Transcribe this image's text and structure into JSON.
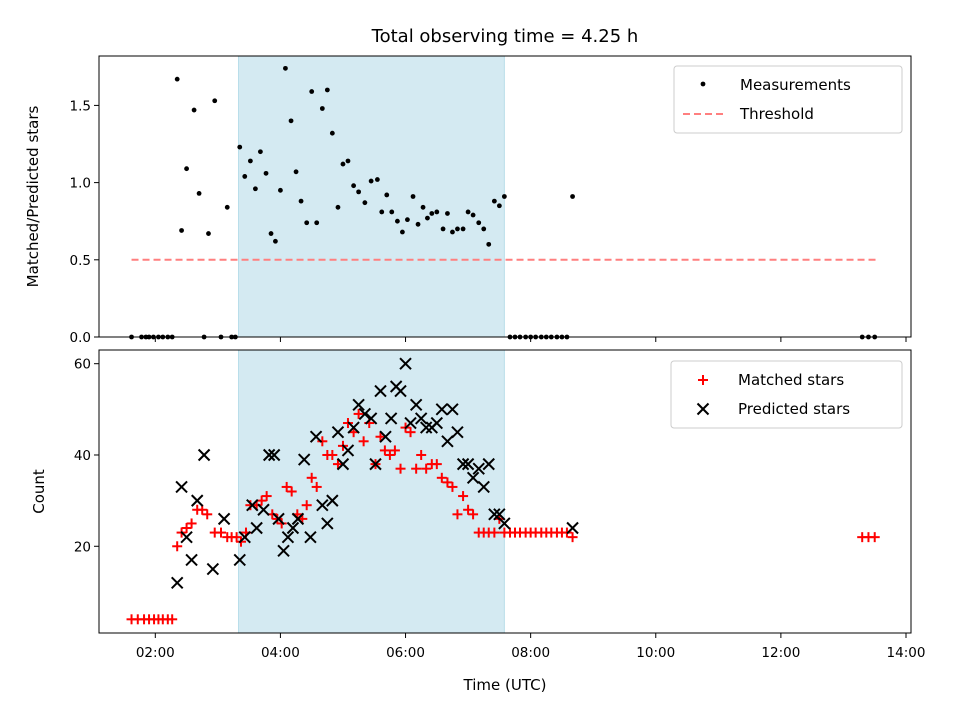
{
  "chart_data": [
    {
      "type": "scatter",
      "title": "Total observing time = 4.25 h",
      "ylabel": "Matched/Predicted stars",
      "xlabel": "",
      "xlim": [
        1.1,
        14.08
      ],
      "ylim": [
        0,
        1.82
      ],
      "x_ticks": [
        2,
        4,
        6,
        8,
        10,
        12,
        14
      ],
      "y_ticks": [
        {
          "value": 0.0,
          "label": "0.0"
        },
        {
          "value": 0.5,
          "label": "0.5"
        },
        {
          "value": 1.0,
          "label": "1.0"
        },
        {
          "value": 1.5,
          "label": "1.5"
        }
      ],
      "shaded_span": {
        "x0": 3.33,
        "x1": 7.58,
        "color": "#add8e6"
      },
      "legend": {
        "placement": "top-right",
        "entries": [
          "Measurements",
          "Threshold"
        ]
      },
      "threshold": {
        "name": "Threshold",
        "y": 0.5,
        "x": [
          1.62,
          13.55
        ],
        "color": "#ff7f7f"
      },
      "series": [
        {
          "name": "Measurements",
          "color": "#000000",
          "points": [
            [
              1.62,
              0
            ],
            [
              1.78,
              0
            ],
            [
              1.85,
              0
            ],
            [
              1.9,
              0
            ],
            [
              1.97,
              0
            ],
            [
              2.05,
              0
            ],
            [
              2.12,
              0
            ],
            [
              2.2,
              0
            ],
            [
              2.27,
              0
            ],
            [
              2.35,
              1.67
            ],
            [
              2.42,
              0.69
            ],
            [
              2.5,
              1.09
            ],
            [
              2.62,
              1.47
            ],
            [
              2.7,
              0.93
            ],
            [
              2.78,
              0
            ],
            [
              2.85,
              0.67
            ],
            [
              2.95,
              1.53
            ],
            [
              3.05,
              0
            ],
            [
              3.15,
              0.84
            ],
            [
              3.22,
              0
            ],
            [
              3.28,
              0
            ],
            [
              3.35,
              1.23
            ],
            [
              3.43,
              1.04
            ],
            [
              3.52,
              1.14
            ],
            [
              3.6,
              0.96
            ],
            [
              3.68,
              1.2
            ],
            [
              3.77,
              1.06
            ],
            [
              3.85,
              0.67
            ],
            [
              3.92,
              0.62
            ],
            [
              4.0,
              0.95
            ],
            [
              4.08,
              1.74
            ],
            [
              4.17,
              1.4
            ],
            [
              4.25,
              1.07
            ],
            [
              4.33,
              0.88
            ],
            [
              4.42,
              0.74
            ],
            [
              4.5,
              1.59
            ],
            [
              4.58,
              0.74
            ],
            [
              4.67,
              1.48
            ],
            [
              4.75,
              1.6
            ],
            [
              4.83,
              1.32
            ],
            [
              4.92,
              0.84
            ],
            [
              5.0,
              1.12
            ],
            [
              5.08,
              1.14
            ],
            [
              5.17,
              0.98
            ],
            [
              5.25,
              0.94
            ],
            [
              5.35,
              0.87
            ],
            [
              5.45,
              1.01
            ],
            [
              5.55,
              1.02
            ],
            [
              5.62,
              0.81
            ],
            [
              5.7,
              0.92
            ],
            [
              5.78,
              0.81
            ],
            [
              5.87,
              0.75
            ],
            [
              5.95,
              0.68
            ],
            [
              6.03,
              0.76
            ],
            [
              6.12,
              0.91
            ],
            [
              6.2,
              0.73
            ],
            [
              6.28,
              0.84
            ],
            [
              6.35,
              0.77
            ],
            [
              6.42,
              0.8
            ],
            [
              6.5,
              0.81
            ],
            [
              6.6,
              0.7
            ],
            [
              6.67,
              0.8
            ],
            [
              6.75,
              0.68
            ],
            [
              6.83,
              0.7
            ],
            [
              6.92,
              0.7
            ],
            [
              7.0,
              0.81
            ],
            [
              7.08,
              0.79
            ],
            [
              7.17,
              0.74
            ],
            [
              7.25,
              0.7
            ],
            [
              7.33,
              0.6
            ],
            [
              7.42,
              0.88
            ],
            [
              7.5,
              0.85
            ],
            [
              7.58,
              0.91
            ],
            [
              7.67,
              0
            ],
            [
              7.75,
              0
            ],
            [
              7.83,
              0
            ],
            [
              7.92,
              0
            ],
            [
              8.0,
              0
            ],
            [
              8.08,
              0
            ],
            [
              8.17,
              0
            ],
            [
              8.25,
              0
            ],
            [
              8.33,
              0
            ],
            [
              8.42,
              0
            ],
            [
              8.5,
              0
            ],
            [
              8.58,
              0
            ],
            [
              8.67,
              0.91
            ],
            [
              13.3,
              0
            ],
            [
              13.4,
              0
            ],
            [
              13.5,
              0
            ]
          ]
        }
      ]
    },
    {
      "type": "scatter",
      "title": "",
      "ylabel": "Count",
      "xlabel": "Time (UTC)",
      "xlim": [
        1.1,
        14.08
      ],
      "ylim": [
        1,
        63
      ],
      "x_ticks": [
        {
          "value": 2,
          "label": "02:00"
        },
        {
          "value": 4,
          "label": "04:00"
        },
        {
          "value": 6,
          "label": "06:00"
        },
        {
          "value": 8,
          "label": "08:00"
        },
        {
          "value": 10,
          "label": "10:00"
        },
        {
          "value": 12,
          "label": "12:00"
        },
        {
          "value": 14,
          "label": "14:00"
        }
      ],
      "y_ticks": [
        {
          "value": 20,
          "label": "20"
        },
        {
          "value": 40,
          "label": "40"
        },
        {
          "value": 60,
          "label": "60"
        }
      ],
      "shaded_span": {
        "x0": 3.33,
        "x1": 7.58,
        "color": "#add8e6"
      },
      "legend": {
        "placement": "top-right",
        "entries": [
          "Matched stars",
          "Predicted stars"
        ]
      },
      "series": [
        {
          "name": "Matched stars",
          "marker": "plus",
          "color": "#ff0000",
          "points": [
            [
              1.62,
              4
            ],
            [
              1.72,
              4
            ],
            [
              1.82,
              4
            ],
            [
              1.9,
              4
            ],
            [
              1.98,
              4
            ],
            [
              2.05,
              4
            ],
            [
              2.12,
              4
            ],
            [
              2.2,
              4
            ],
            [
              2.27,
              4
            ],
            [
              2.35,
              20
            ],
            [
              2.42,
              23
            ],
            [
              2.5,
              24
            ],
            [
              2.58,
              25
            ],
            [
              2.67,
              28
            ],
            [
              2.75,
              28
            ],
            [
              2.83,
              27
            ],
            [
              2.95,
              23
            ],
            [
              3.05,
              23
            ],
            [
              3.15,
              22
            ],
            [
              3.22,
              22
            ],
            [
              3.3,
              22
            ],
            [
              3.37,
              21
            ],
            [
              3.45,
              23
            ],
            [
              3.52,
              29
            ],
            [
              3.62,
              29
            ],
            [
              3.7,
              30
            ],
            [
              3.78,
              31
            ],
            [
              3.87,
              27
            ],
            [
              3.95,
              26
            ],
            [
              4.02,
              25
            ],
            [
              4.1,
              33
            ],
            [
              4.18,
              32
            ],
            [
              4.27,
              27
            ],
            [
              4.35,
              26
            ],
            [
              4.42,
              29
            ],
            [
              4.5,
              35
            ],
            [
              4.58,
              33
            ],
            [
              4.67,
              43
            ],
            [
              4.75,
              40
            ],
            [
              4.83,
              40
            ],
            [
              4.92,
              38
            ],
            [
              5.0,
              42
            ],
            [
              5.08,
              47
            ],
            [
              5.17,
              45
            ],
            [
              5.25,
              49
            ],
            [
              5.33,
              43
            ],
            [
              5.42,
              47
            ],
            [
              5.52,
              38
            ],
            [
              5.6,
              44
            ],
            [
              5.67,
              41
            ],
            [
              5.75,
              40
            ],
            [
              5.83,
              41
            ],
            [
              5.92,
              37
            ],
            [
              6.0,
              46
            ],
            [
              6.08,
              45
            ],
            [
              6.17,
              37
            ],
            [
              6.25,
              40
            ],
            [
              6.33,
              37
            ],
            [
              6.42,
              38
            ],
            [
              6.5,
              38
            ],
            [
              6.58,
              35
            ],
            [
              6.67,
              34
            ],
            [
              6.75,
              33
            ],
            [
              6.83,
              27
            ],
            [
              6.92,
              31
            ],
            [
              7.0,
              28
            ],
            [
              7.08,
              27
            ],
            [
              7.17,
              23
            ],
            [
              7.25,
              23
            ],
            [
              7.33,
              23
            ],
            [
              7.42,
              23
            ],
            [
              7.5,
              26
            ],
            [
              7.58,
              23
            ],
            [
              7.67,
              23
            ],
            [
              7.75,
              23
            ],
            [
              7.83,
              23
            ],
            [
              7.92,
              23
            ],
            [
              8.0,
              23
            ],
            [
              8.08,
              23
            ],
            [
              8.17,
              23
            ],
            [
              8.25,
              23
            ],
            [
              8.33,
              23
            ],
            [
              8.42,
              23
            ],
            [
              8.5,
              23
            ],
            [
              8.58,
              23
            ],
            [
              8.67,
              22
            ],
            [
              13.3,
              22
            ],
            [
              13.4,
              22
            ],
            [
              13.5,
              22
            ]
          ]
        },
        {
          "name": "Predicted stars",
          "marker": "x",
          "color": "#000000",
          "points": [
            [
              2.35,
              12
            ],
            [
              2.42,
              33
            ],
            [
              2.5,
              22
            ],
            [
              2.58,
              17
            ],
            [
              2.67,
              30
            ],
            [
              2.78,
              40
            ],
            [
              2.92,
              15
            ],
            [
              3.1,
              26
            ],
            [
              3.35,
              17
            ],
            [
              3.43,
              22
            ],
            [
              3.55,
              29
            ],
            [
              3.62,
              24
            ],
            [
              3.73,
              28
            ],
            [
              3.82,
              40
            ],
            [
              3.9,
              40
            ],
            [
              3.97,
              26
            ],
            [
              4.05,
              19
            ],
            [
              4.12,
              22
            ],
            [
              4.2,
              24
            ],
            [
              4.28,
              26
            ],
            [
              4.38,
              39
            ],
            [
              4.48,
              22
            ],
            [
              4.57,
              44
            ],
            [
              4.67,
              29
            ],
            [
              4.75,
              25
            ],
            [
              4.83,
              30
            ],
            [
              4.92,
              45
            ],
            [
              5.0,
              38
            ],
            [
              5.08,
              41
            ],
            [
              5.17,
              46
            ],
            [
              5.25,
              51
            ],
            [
              5.35,
              49
            ],
            [
              5.45,
              48
            ],
            [
              5.52,
              38
            ],
            [
              5.6,
              54
            ],
            [
              5.68,
              44
            ],
            [
              5.77,
              48
            ],
            [
              5.85,
              55
            ],
            [
              5.92,
              54
            ],
            [
              6.0,
              60
            ],
            [
              6.08,
              47
            ],
            [
              6.17,
              51
            ],
            [
              6.25,
              48
            ],
            [
              6.33,
              46
            ],
            [
              6.42,
              46
            ],
            [
              6.5,
              47
            ],
            [
              6.58,
              50
            ],
            [
              6.67,
              43
            ],
            [
              6.75,
              50
            ],
            [
              6.83,
              45
            ],
            [
              6.92,
              38
            ],
            [
              7.0,
              38
            ],
            [
              7.08,
              35
            ],
            [
              7.17,
              37
            ],
            [
              7.25,
              33
            ],
            [
              7.33,
              38
            ],
            [
              7.42,
              27
            ],
            [
              7.5,
              27
            ],
            [
              7.58,
              25
            ],
            [
              8.67,
              24
            ]
          ]
        }
      ]
    }
  ]
}
